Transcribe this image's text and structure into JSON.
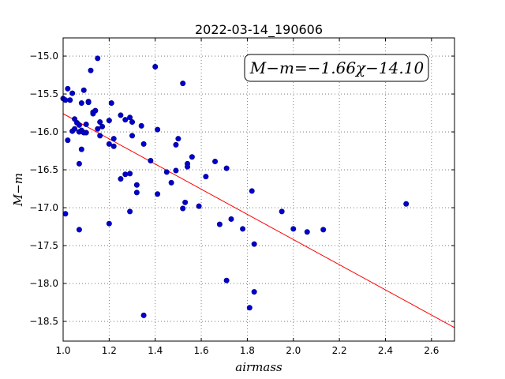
{
  "chart_data": {
    "type": "scatter",
    "title": "2022-03-14_190606",
    "xlabel": "airmass",
    "ylabel": "M−m",
    "xlim": [
      1.0,
      2.7
    ],
    "ylim": [
      -18.76,
      -14.76
    ],
    "xticks": [
      1.0,
      1.2,
      1.4,
      1.6,
      1.8,
      2.0,
      2.2,
      2.4,
      2.6
    ],
    "xtick_labels": [
      "1.0",
      "1.2",
      "1.4",
      "1.6",
      "1.8",
      "2.0",
      "2.2",
      "2.4",
      "2.6"
    ],
    "yticks": [
      -15.0,
      -15.5,
      -16.0,
      -16.5,
      -17.0,
      -17.5,
      -18.0,
      -18.5
    ],
    "ytick_labels": [
      "−15.0",
      "−15.5",
      "−16.0",
      "−16.5",
      "−17.0",
      "−17.5",
      "−18.0",
      "−18.5"
    ],
    "grid": true,
    "annotation": "M−m=−1.66χ−14.10",
    "fit": {
      "slope": -1.66,
      "intercept": -14.1,
      "color": "#ff0000"
    },
    "point_color": "#0000cc",
    "points": [
      [
        1.0,
        -15.56
      ],
      [
        1.01,
        -15.58
      ],
      [
        1.01,
        -17.08
      ],
      [
        1.02,
        -15.43
      ],
      [
        1.02,
        -16.11
      ],
      [
        1.03,
        -15.58
      ],
      [
        1.04,
        -15.49
      ],
      [
        1.04,
        -15.99
      ],
      [
        1.05,
        -15.83
      ],
      [
        1.05,
        -15.96
      ],
      [
        1.06,
        -15.88
      ],
      [
        1.07,
        -15.91
      ],
      [
        1.07,
        -16.0
      ],
      [
        1.07,
        -16.42
      ],
      [
        1.07,
        -17.29
      ],
      [
        1.08,
        -15.62
      ],
      [
        1.08,
        -15.98
      ],
      [
        1.08,
        -16.23
      ],
      [
        1.09,
        -15.45
      ],
      [
        1.09,
        -16.01
      ],
      [
        1.1,
        -15.9
      ],
      [
        1.1,
        -16.01
      ],
      [
        1.11,
        -15.6
      ],
      [
        1.11,
        -15.61
      ],
      [
        1.12,
        -15.19
      ],
      [
        1.13,
        -15.74
      ],
      [
        1.13,
        -15.76
      ],
      [
        1.14,
        -15.72
      ],
      [
        1.15,
        -15.03
      ],
      [
        1.15,
        -15.96
      ],
      [
        1.16,
        -15.87
      ],
      [
        1.16,
        -16.05
      ],
      [
        1.17,
        -15.93
      ],
      [
        1.2,
        -15.85
      ],
      [
        1.2,
        -16.16
      ],
      [
        1.2,
        -17.21
      ],
      [
        1.21,
        -15.62
      ],
      [
        1.22,
        -16.09
      ],
      [
        1.22,
        -16.19
      ],
      [
        1.25,
        -15.78
      ],
      [
        1.25,
        -16.62
      ],
      [
        1.27,
        -15.84
      ],
      [
        1.27,
        -16.56
      ],
      [
        1.29,
        -15.81
      ],
      [
        1.29,
        -16.55
      ],
      [
        1.29,
        -17.05
      ],
      [
        1.3,
        -15.87
      ],
      [
        1.3,
        -16.05
      ],
      [
        1.32,
        -16.7
      ],
      [
        1.32,
        -16.8
      ],
      [
        1.34,
        -15.92
      ],
      [
        1.35,
        -16.16
      ],
      [
        1.35,
        -18.42
      ],
      [
        1.38,
        -16.38
      ],
      [
        1.4,
        -15.14
      ],
      [
        1.41,
        -15.97
      ],
      [
        1.41,
        -16.82
      ],
      [
        1.45,
        -16.53
      ],
      [
        1.47,
        -16.67
      ],
      [
        1.49,
        -16.17
      ],
      [
        1.49,
        -16.51
      ],
      [
        1.5,
        -16.09
      ],
      [
        1.52,
        -17.01
      ],
      [
        1.52,
        -15.36
      ],
      [
        1.53,
        -16.93
      ],
      [
        1.54,
        -16.42
      ],
      [
        1.54,
        -16.46
      ],
      [
        1.56,
        -16.33
      ],
      [
        1.59,
        -16.98
      ],
      [
        1.62,
        -16.59
      ],
      [
        1.66,
        -16.39
      ],
      [
        1.68,
        -17.22
      ],
      [
        1.71,
        -17.96
      ],
      [
        1.71,
        -16.48
      ],
      [
        1.73,
        -17.15
      ],
      [
        1.78,
        -17.28
      ],
      [
        1.81,
        -18.32
      ],
      [
        1.82,
        -16.78
      ],
      [
        1.83,
        -18.11
      ],
      [
        1.83,
        -17.48
      ],
      [
        1.95,
        -17.05
      ],
      [
        2.0,
        -17.28
      ],
      [
        2.06,
        -17.32
      ],
      [
        2.13,
        -17.29
      ],
      [
        2.49,
        -16.95
      ]
    ]
  }
}
